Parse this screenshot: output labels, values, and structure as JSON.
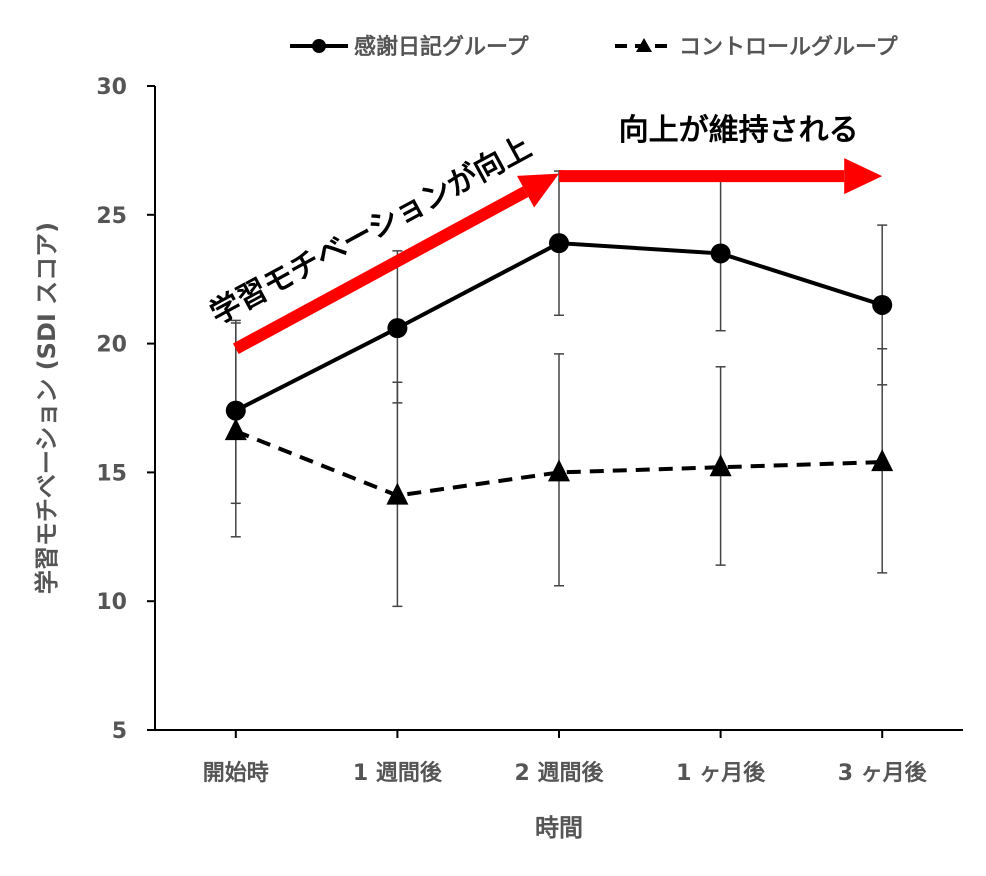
{
  "chart_data": {
    "type": "line",
    "title": "",
    "xlabel": "時間",
    "ylabel": "学習モチベーション (SDI スコア)",
    "categories": [
      "開始時",
      "1 週間後",
      "2 週間後",
      "1 ヶ月後",
      "3 ヶ月後"
    ],
    "ylim": [
      5,
      30
    ],
    "yticks": [
      5,
      10,
      15,
      20,
      25,
      30
    ],
    "grid": false,
    "legend_position": "top-right",
    "series": [
      {
        "name": "感謝日記グループ",
        "values": [
          17.4,
          20.6,
          23.9,
          23.5,
          21.5
        ],
        "err_low": [
          13.8,
          17.7,
          21.1,
          20.5,
          18.4
        ],
        "err_high": [
          20.9,
          23.6,
          26.7,
          26.6,
          24.6
        ],
        "line_style": "solid",
        "marker": "circle",
        "color": "#000000"
      },
      {
        "name": "コントロールグループ",
        "values": [
          16.6,
          14.1,
          15.0,
          15.2,
          15.4
        ],
        "err_low": [
          12.5,
          9.8,
          10.6,
          11.4,
          11.1
        ],
        "err_high": [
          20.8,
          18.5,
          19.6,
          19.1,
          19.8
        ],
        "line_style": "dashed",
        "marker": "triangle",
        "color": "#000000"
      }
    ],
    "annotations": [
      {
        "text": "学習モチベーションが向上",
        "color": "#000000",
        "arrow_color": "#ff0000",
        "arrow_from": [
          "開始時",
          19.8
        ],
        "arrow_to": [
          "2 週間後",
          26.6
        ]
      },
      {
        "text": "向上が維持される",
        "color": "#000000",
        "arrow_color": "#ff0000",
        "arrow_from": [
          "2 週間後",
          26.5
        ],
        "arrow_to": [
          "3 ヶ月後",
          26.5
        ]
      }
    ]
  }
}
